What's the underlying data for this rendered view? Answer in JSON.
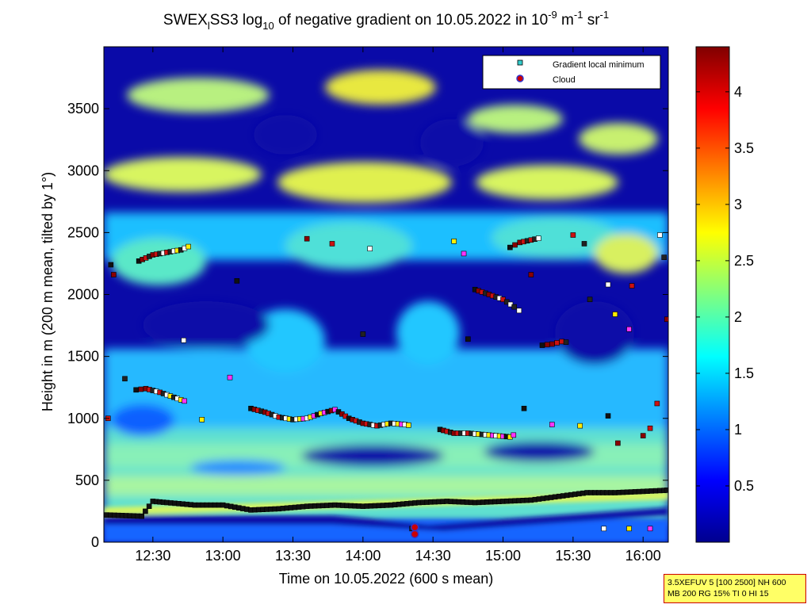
{
  "chart_data": {
    "type": "heatmap",
    "title": {
      "part1": "SWEX",
      "sub1": "l",
      "part2": "SS3 log",
      "sub2": "10",
      "part3": " of negative gradient on 10.05.2022 in 10",
      "sup1": "-9",
      "part4": " m",
      "sup2": "-1",
      "part5": " sr",
      "sup3": "-1"
    },
    "xlabel": "Time on 10.05.2022 (600 s mean)",
    "ylabel": "Height in m (200 m mean, tilted by 1°)",
    "xlim": [
      12.15,
      16.18
    ],
    "ylim": [
      0,
      4000
    ],
    "x_ticks": [
      {
        "v": 12.5,
        "label": "12:30"
      },
      {
        "v": 13.0,
        "label": "13:00"
      },
      {
        "v": 13.5,
        "label": "13:30"
      },
      {
        "v": 14.0,
        "label": "14:00"
      },
      {
        "v": 14.5,
        "label": "14:30"
      },
      {
        "v": 15.0,
        "label": "15:00"
      },
      {
        "v": 15.5,
        "label": "15:30"
      },
      {
        "v": 16.0,
        "label": "16:00"
      }
    ],
    "y_ticks": [
      {
        "v": 0,
        "label": "0"
      },
      {
        "v": 500,
        "label": "500"
      },
      {
        "v": 1000,
        "label": "1000"
      },
      {
        "v": 1500,
        "label": "1500"
      },
      {
        "v": 2000,
        "label": "2000"
      },
      {
        "v": 2500,
        "label": "2500"
      },
      {
        "v": 3000,
        "label": "3000"
      },
      {
        "v": 3500,
        "label": "3500"
      }
    ],
    "colorbar": {
      "clim": [
        0,
        4.4
      ],
      "ticks": [
        {
          "v": 0.5,
          "label": "0.5"
        },
        {
          "v": 1.0,
          "label": "1"
        },
        {
          "v": 1.5,
          "label": "1.5"
        },
        {
          "v": 2.0,
          "label": "2"
        },
        {
          "v": 2.5,
          "label": "2.5"
        },
        {
          "v": 3.0,
          "label": "3"
        },
        {
          "v": 3.5,
          "label": "3.5"
        },
        {
          "v": 4.0,
          "label": "4"
        }
      ],
      "colormap": "jet"
    },
    "legend": {
      "placement": "top-right",
      "entries": [
        {
          "label": "Gradient local minimum",
          "marker": "square",
          "color": "#33cccc"
        },
        {
          "label": "Cloud",
          "marker": "circle",
          "color": "#cc0000",
          "edge": "#3333cc"
        }
      ]
    },
    "gradient_minimum_layers": [
      {
        "x": [
          12.17,
          12.42,
          12.5,
          12.6,
          12.8,
          13.0,
          13.2,
          13.4,
          13.6,
          13.8,
          14.0,
          14.2,
          14.4,
          14.6,
          14.8,
          15.0,
          15.2,
          15.4,
          15.6,
          15.8,
          16.0,
          16.18
        ],
        "y": [
          220,
          210,
          330,
          320,
          300,
          300,
          260,
          270,
          290,
          300,
          290,
          300,
          320,
          330,
          320,
          330,
          340,
          370,
          400,
          400,
          410,
          420
        ]
      },
      {
        "x": [
          12.38,
          12.45,
          12.55,
          12.65,
          12.75
        ],
        "y": [
          1230,
          1240,
          1210,
          1170,
          1130
        ]
      },
      {
        "x": [
          13.2,
          13.3,
          13.4,
          13.5,
          13.6,
          13.7,
          13.8,
          13.9,
          14.0,
          14.1,
          14.2,
          14.3,
          14.35
        ],
        "y": [
          1080,
          1050,
          1010,
          990,
          1000,
          1040,
          1070,
          1000,
          960,
          940,
          960,
          950,
          940
        ]
      },
      {
        "x": [
          14.55,
          14.65,
          14.75,
          14.85,
          14.95,
          15.05,
          15.1
        ],
        "y": [
          910,
          880,
          880,
          870,
          860,
          850,
          880
        ]
      },
      {
        "x": [
          12.4,
          12.5,
          12.6,
          12.7,
          12.78
        ],
        "y": [
          2270,
          2320,
          2340,
          2360,
          2400
        ]
      },
      {
        "x": [
          15.05,
          15.12,
          15.2,
          15.28
        ],
        "y": [
          2380,
          2420,
          2440,
          2460
        ]
      },
      {
        "x": [
          14.8,
          14.9,
          15.0,
          15.08,
          15.15
        ],
        "y": [
          2040,
          2000,
          1960,
          1900,
          1840
        ]
      },
      {
        "x": [
          15.28,
          15.35,
          15.42,
          15.48
        ],
        "y": [
          1590,
          1600,
          1620,
          1610
        ]
      }
    ],
    "gradient_minimum_points": [
      {
        "x": 12.2,
        "y": 2240
      },
      {
        "x": 12.22,
        "y": 2160
      },
      {
        "x": 12.18,
        "y": 1000
      },
      {
        "x": 12.3,
        "y": 1320
      },
      {
        "x": 12.72,
        "y": 1630
      },
      {
        "x": 12.85,
        "y": 990
      },
      {
        "x": 13.05,
        "y": 1330
      },
      {
        "x": 13.1,
        "y": 2110
      },
      {
        "x": 13.6,
        "y": 2450
      },
      {
        "x": 13.78,
        "y": 2410
      },
      {
        "x": 14.0,
        "y": 1680
      },
      {
        "x": 14.05,
        "y": 2370
      },
      {
        "x": 14.65,
        "y": 2430
      },
      {
        "x": 14.72,
        "y": 2330
      },
      {
        "x": 14.75,
        "y": 1640
      },
      {
        "x": 15.2,
        "y": 2160
      },
      {
        "x": 15.5,
        "y": 2480
      },
      {
        "x": 15.58,
        "y": 2410
      },
      {
        "x": 15.75,
        "y": 2080
      },
      {
        "x": 15.8,
        "y": 1840
      },
      {
        "x": 15.9,
        "y": 1720
      },
      {
        "x": 15.75,
        "y": 1020
      },
      {
        "x": 15.82,
        "y": 800
      },
      {
        "x": 16.1,
        "y": 1120
      },
      {
        "x": 16.15,
        "y": 2300
      },
      {
        "x": 16.12,
        "y": 2480
      },
      {
        "x": 15.55,
        "y": 940
      },
      {
        "x": 15.35,
        "y": 950
      },
      {
        "x": 15.15,
        "y": 1080
      },
      {
        "x": 16.0,
        "y": 860
      },
      {
        "x": 16.05,
        "y": 920
      },
      {
        "x": 14.35,
        "y": 110
      },
      {
        "x": 15.72,
        "y": 110
      },
      {
        "x": 15.9,
        "y": 110
      },
      {
        "x": 16.05,
        "y": 110
      },
      {
        "x": 16.17,
        "y": 420
      },
      {
        "x": 16.17,
        "y": 1800
      },
      {
        "x": 15.92,
        "y": 2070
      },
      {
        "x": 15.62,
        "y": 1960
      }
    ],
    "cloud_points": [
      {
        "x": 14.37,
        "y": 120
      },
      {
        "x": 14.37,
        "y": 65
      }
    ]
  },
  "info_box": {
    "line1": "3.5XEFUV 5 [100 2500] NH 600",
    "line2": "MB 200 RG 15% TI 0 HI 15"
  }
}
